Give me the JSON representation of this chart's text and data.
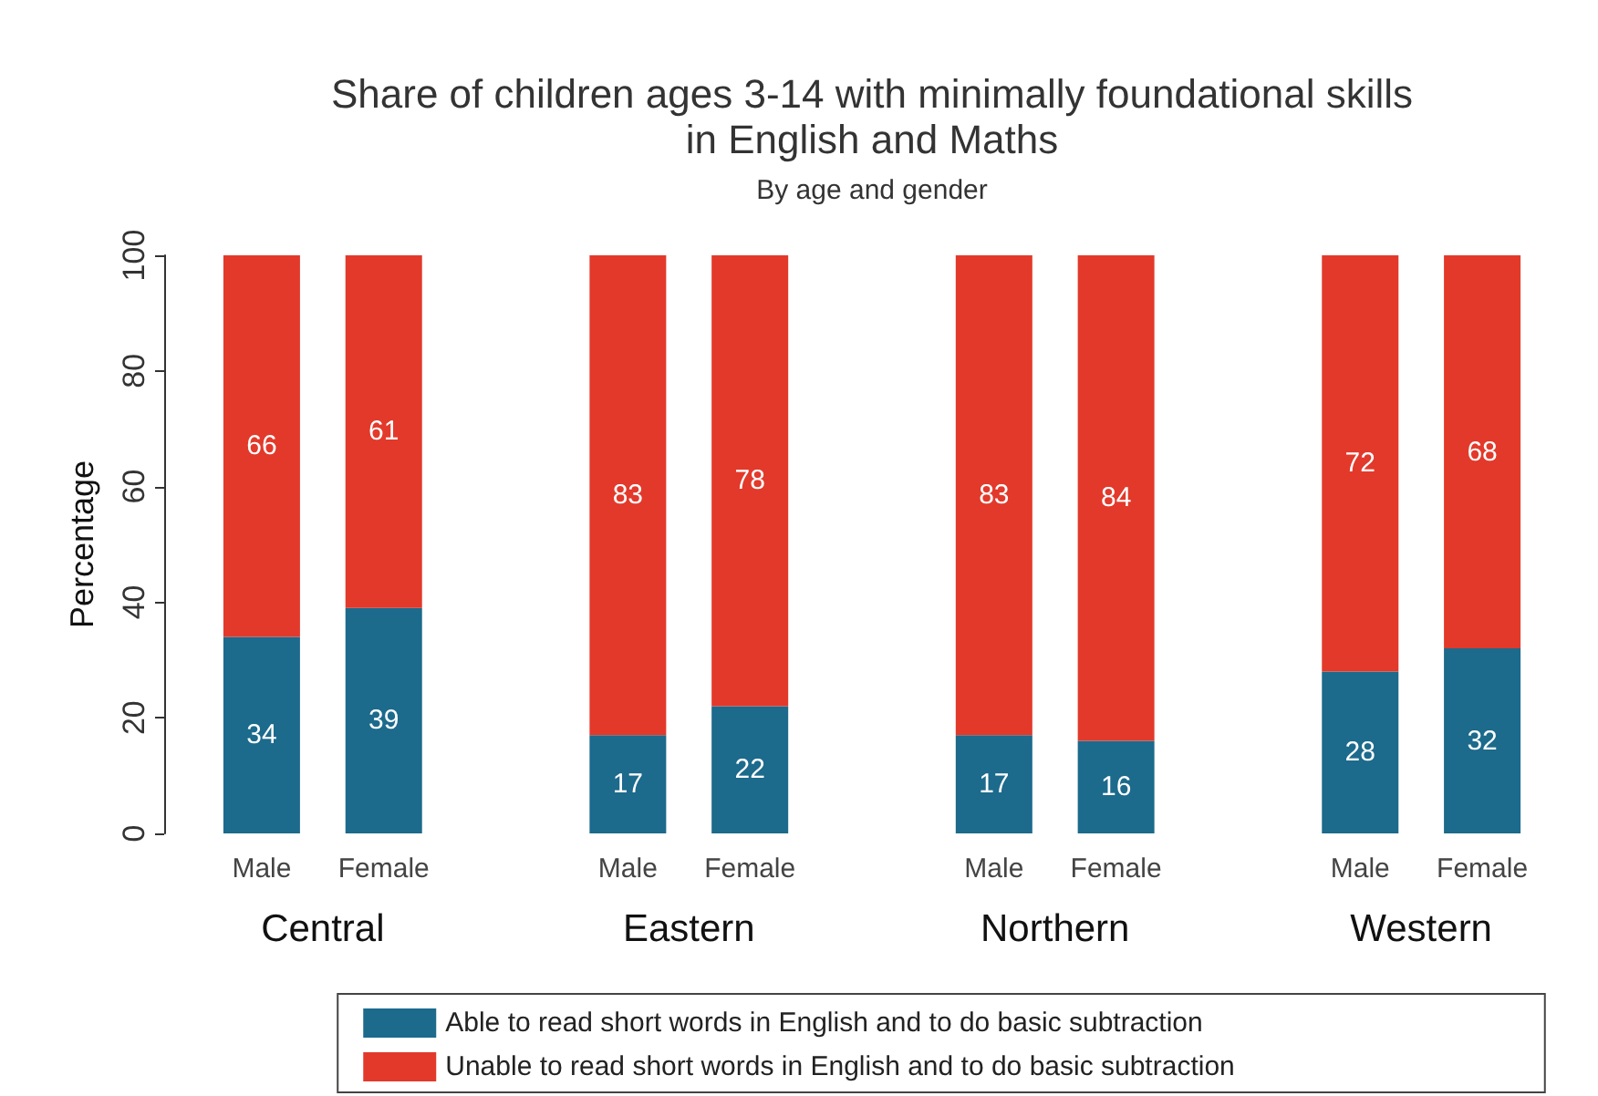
{
  "chart_data": {
    "type": "bar",
    "title": "Share of children ages 3-14 with minimally foundational skills\nin English and Maths",
    "subtitle": "By age and gender",
    "ylabel": "Percentage",
    "categories": [
      "Male",
      "Female",
      null,
      "Male",
      "Female",
      null,
      "Male",
      "Female",
      null,
      "Male",
      "Female"
    ],
    "annotations": [
      "Central",
      "Eastern",
      "Northern",
      "Western"
    ],
    "stacked": true,
    "data_labels": true,
    "grid": false,
    "legend": "bottom",
    "ylim": [
      0,
      100
    ],
    "yticks": [
      0,
      20,
      40,
      60,
      80,
      100
    ],
    "series": [
      {
        "name": "Able to read short words in English and to do basic subtraction",
        "color": "#1c6a8c",
        "values": [
          34,
          39,
          null,
          17,
          22,
          null,
          17,
          16,
          null,
          28,
          32
        ]
      },
      {
        "name": "Unable to read short words in English and to do basic subtraction",
        "color": "#e2392b",
        "values": [
          66,
          61,
          null,
          83,
          78,
          null,
          83,
          84,
          null,
          72,
          68
        ]
      }
    ]
  }
}
